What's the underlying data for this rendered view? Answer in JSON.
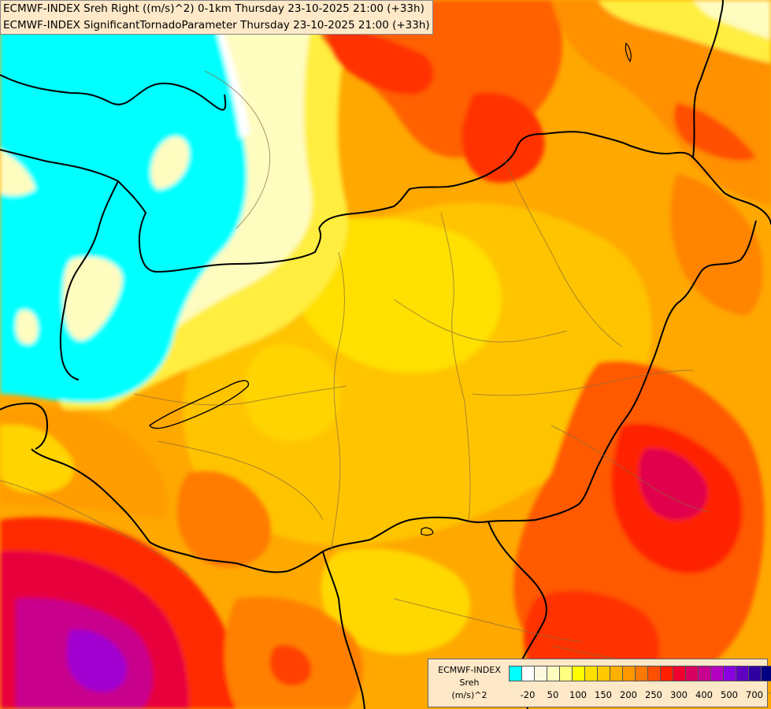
{
  "header": {
    "line1": "ECMWF-INDEX Sreh Right ((m/s)^2) 0-1km Thursday 23-10-2025 21:00 (+33h)",
    "line2": "ECMWF-INDEX SignificantTornadoParameter Thursday 23-10-2025 21:00 (+33h)"
  },
  "legend": {
    "line1": "ECMWF-INDEX",
    "line2": "Sreh",
    "line3": "(m/s)^2",
    "colors": [
      "#00ffff",
      "#ffffff",
      "#fff8e0",
      "#fffcc0",
      "#ffff80",
      "#ffff00",
      "#ffe000",
      "#ffc800",
      "#ffb000",
      "#ff9800",
      "#ff7800",
      "#ff5000",
      "#ff2000",
      "#ee0030",
      "#d80060",
      "#c80090",
      "#b400c0",
      "#8800e0",
      "#6000c0",
      "#3000a0",
      "#000080"
    ],
    "ticks": [
      "-20",
      "50",
      "100",
      "150",
      "200",
      "250",
      "300",
      "400",
      "500",
      "700"
    ]
  },
  "palette": {
    "cyan": "#00ffff",
    "cream": "#fffcc8",
    "yellow": "#ffee00",
    "gold": "#ffc800",
    "orange": "#ff9c00",
    "deep_orange": "#ff6a00",
    "red": "#ff2a00",
    "crimson": "#e8003c",
    "magenta": "#c8008c",
    "purple": "#a000d0"
  }
}
